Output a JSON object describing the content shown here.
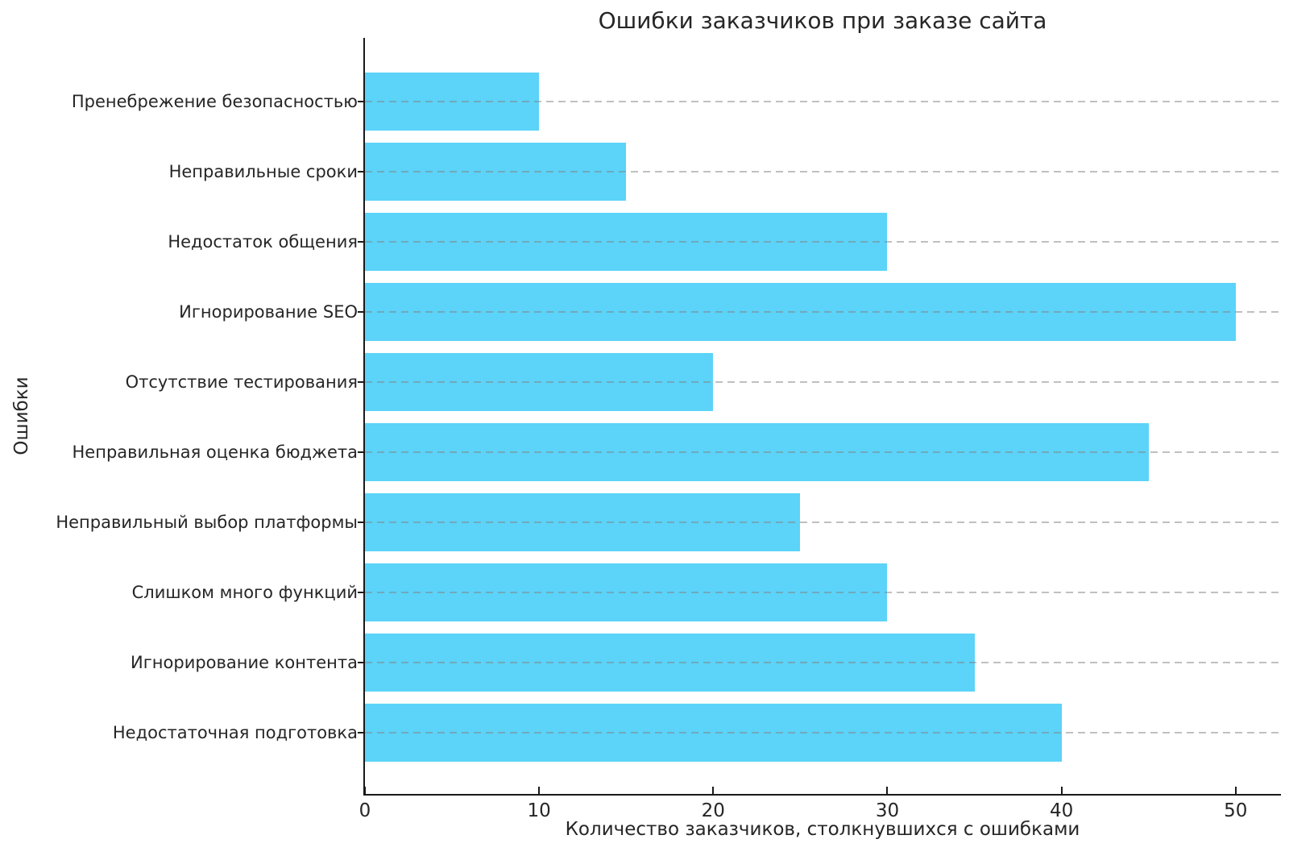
{
  "figure": {
    "title": "Ошибки заказчиков при заказе сайта",
    "xlabel": "Количество заказчиков, столкнувшихся с ошибками",
    "ylabel": "Ошибки"
  },
  "chart_data": {
    "type": "bar",
    "orientation": "horizontal",
    "title": "Ошибки заказчиков при заказе сайта",
    "xlabel": "Количество заказчиков, столкнувшихся с ошибками",
    "ylabel": "Ошибки",
    "categories": [
      "Пренебрежение безопасностью",
      "Неправильные сроки",
      "Недостаток общения",
      "Игнорирование SEO",
      "Отсутствие тестирования",
      "Неправильная оценка бюджета",
      "Неправильный выбор платформы",
      "Слишком много функций",
      "Игнорирование контента",
      "Недостаточная подготовка"
    ],
    "values": [
      10,
      15,
      30,
      50,
      20,
      45,
      25,
      30,
      35,
      40
    ],
    "x_ticks": [
      0,
      10,
      20,
      30,
      40,
      50
    ],
    "xlim": [
      0,
      52.6
    ],
    "grid": "horizontal-dashed",
    "legend": "none",
    "colors": {
      "bar": "#5CD3F8",
      "grid": "#c8c8c8",
      "spine": "#1a1a1a",
      "text": "#262626",
      "background": "#ffffff"
    }
  }
}
